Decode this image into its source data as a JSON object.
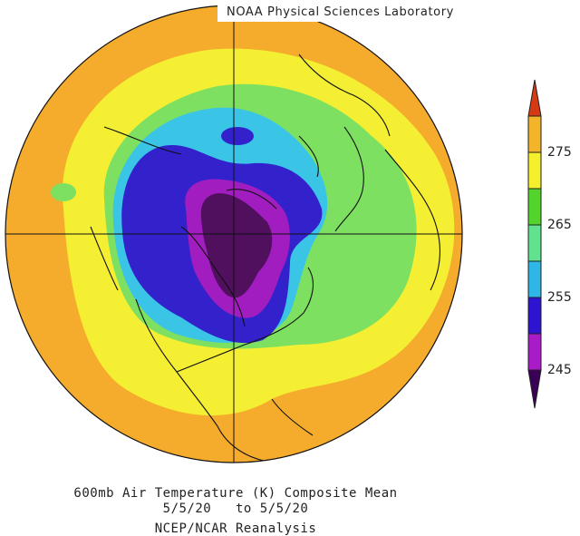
{
  "header": {
    "lab": "NOAA Physical Sciences Laboratory"
  },
  "caption": {
    "line1": "600mb Air Temperature (K) Composite Mean",
    "line2": "5/5/20   to 5/5/20",
    "line3": "NCEP/NCAR Reanalysis"
  },
  "colorbar": {
    "ticks": [
      "275",
      "265",
      "255",
      "245"
    ],
    "bands": [
      "#3a0058",
      "#a91bc9",
      "#2c14d0",
      "#2fb6e6",
      "#61e28e",
      "#52d42a",
      "#f5ef2c",
      "#f2b52a",
      "#d63a14"
    ]
  },
  "map": {
    "projection": "north polar stereographic",
    "field_colors": {
      "outer": "#f5ac2c",
      "yellow": "#f4ef32",
      "green": "#7ee061",
      "lightblue": "#3ac4e6",
      "blue": "#3322cc",
      "magenta": "#a11dbf",
      "purple": "#50105e"
    }
  }
}
